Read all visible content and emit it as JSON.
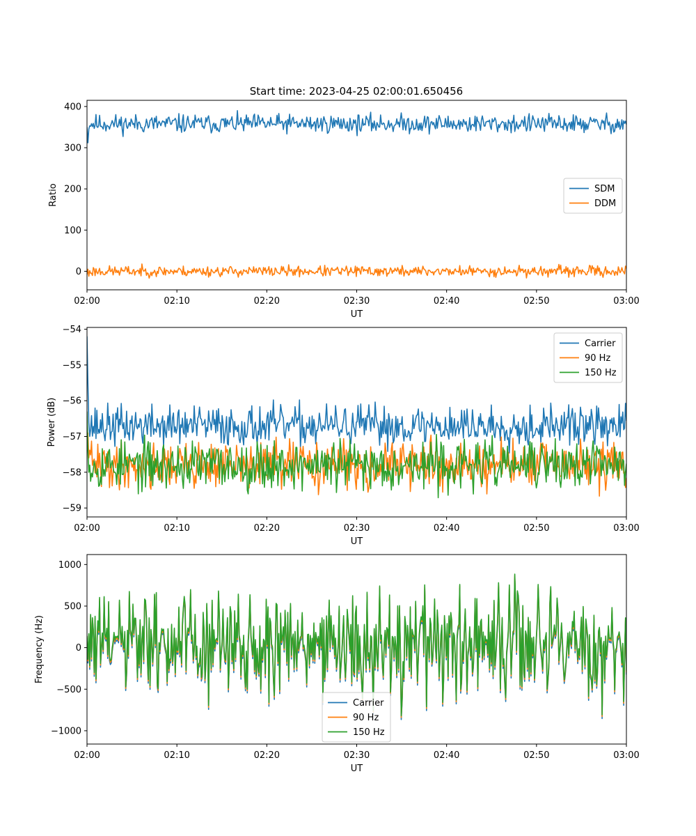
{
  "figure": {
    "title": "Start time: 2023-04-25 02:00:01.650456"
  },
  "colors": {
    "blue": "#1f77b4",
    "orange": "#ff7f0e",
    "green": "#2ca02c"
  },
  "chart_data": [
    {
      "type": "line",
      "title": "Start time: 2023-04-25 02:00:01.650456",
      "xlabel": "UT",
      "ylabel": "Ratio",
      "xlim": [
        "02:00",
        "03:00"
      ],
      "xticks": [
        "02:00",
        "02:10",
        "02:20",
        "02:30",
        "02:40",
        "02:50",
        "03:00"
      ],
      "ylim": [
        -45,
        415
      ],
      "yticks": [
        0,
        100,
        200,
        300,
        400
      ],
      "ytick_labels": [
        "0",
        "100",
        "200",
        "300",
        "400"
      ],
      "legend": {
        "placement": "center-right"
      },
      "grid": false,
      "series": [
        {
          "name": "SDM",
          "color": "#1f77b4",
          "center": 358,
          "noise": 14,
          "seed": 11,
          "initial": [
            350,
            312,
            345
          ]
        },
        {
          "name": "DDM",
          "color": "#ff7f0e",
          "center": 0,
          "noise": 8,
          "seed": 23,
          "initial": [
            -8,
            5,
            -12
          ]
        }
      ]
    },
    {
      "type": "line",
      "xlabel": "UT",
      "ylabel": "Power (dB)",
      "xlim": [
        "02:00",
        "03:00"
      ],
      "xticks": [
        "02:00",
        "02:10",
        "02:20",
        "02:30",
        "02:40",
        "02:50",
        "03:00"
      ],
      "ylim": [
        -59.25,
        -53.95
      ],
      "yticks": [
        -59,
        -58,
        -57,
        -56,
        -55,
        -54
      ],
      "ytick_labels": [
        "−59",
        "−58",
        "−57",
        "−56",
        "−55",
        "−54"
      ],
      "legend": {
        "placement": "top-right"
      },
      "grid": false,
      "series": [
        {
          "name": "Carrier",
          "color": "#1f77b4",
          "center": -56.7,
          "noise": 0.35,
          "seed": 37,
          "initial": [
            -54.2,
            -55.5,
            -56.6,
            -57.0
          ]
        },
        {
          "name": "90 Hz",
          "color": "#ff7f0e",
          "center": -57.8,
          "noise": 0.4,
          "seed": 41,
          "initial": [
            -57.4,
            -56.9,
            -57.6
          ]
        },
        {
          "name": "150 Hz",
          "color": "#2ca02c",
          "center": -57.8,
          "noise": 0.42,
          "seed": 53,
          "initial": [
            -56.3,
            -57.4,
            -58.0
          ]
        }
      ]
    },
    {
      "type": "line",
      "xlabel": "UT",
      "ylabel": "Frequency (Hz)",
      "xlim": [
        "02:00",
        "03:00"
      ],
      "xticks": [
        "02:00",
        "02:10",
        "02:20",
        "02:30",
        "02:40",
        "02:50",
        "03:00"
      ],
      "ylim": [
        -1160,
        1120
      ],
      "yticks": [
        -1000,
        -500,
        0,
        500,
        1000
      ],
      "ytick_labels": [
        "−1000",
        "−500",
        "0",
        "500",
        "1000"
      ],
      "legend": {
        "placement": "lower-center"
      },
      "grid": false,
      "series": [
        {
          "name": "Carrier",
          "color": "#1f77b4",
          "center": 0,
          "noise": 380,
          "seed": 61
        },
        {
          "name": "90 Hz",
          "color": "#ff7f0e",
          "center": 0,
          "noise": 380,
          "seed": 61
        },
        {
          "name": "150 Hz",
          "color": "#2ca02c",
          "center": 0,
          "noise": 380,
          "seed": 61
        }
      ]
    }
  ]
}
